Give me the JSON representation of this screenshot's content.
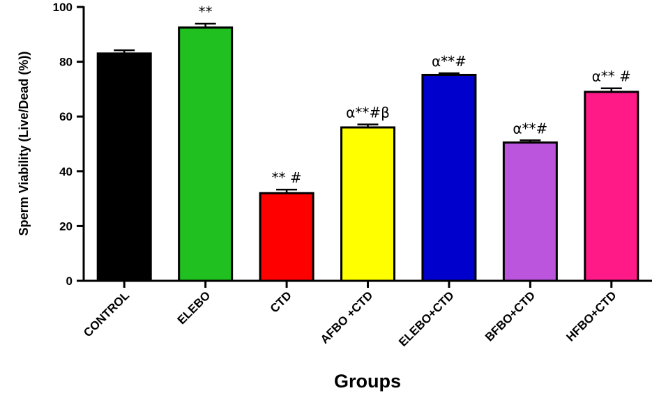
{
  "chart_data": {
    "type": "bar",
    "xlabel": "Groups",
    "ylabel": "Sperm Viability  (Live/Dead (%))",
    "ylim": [
      0,
      100
    ],
    "yticks": [
      0,
      20,
      40,
      60,
      80,
      100
    ],
    "grid": false,
    "categories": [
      "CONTROL",
      "ELEBO",
      "CTD",
      "AFBO +CTD",
      "ELEBO+CTD",
      "BFBO+CTD",
      "HFBO+CTD"
    ],
    "values": [
      83,
      92.5,
      32,
      56,
      75.2,
      50.5,
      69
    ],
    "errors": [
      1.2,
      1.4,
      1.3,
      1.1,
      0.6,
      0.8,
      1.3
    ],
    "colors": [
      "#000000",
      "#1fc01f",
      "#ff0000",
      "#ffff00",
      "#0000cc",
      "#bb55dd",
      "#ff1a88"
    ],
    "annotations": [
      "",
      "**",
      "** #",
      "α**#β",
      "α**#",
      "α**#",
      "α** #"
    ]
  }
}
